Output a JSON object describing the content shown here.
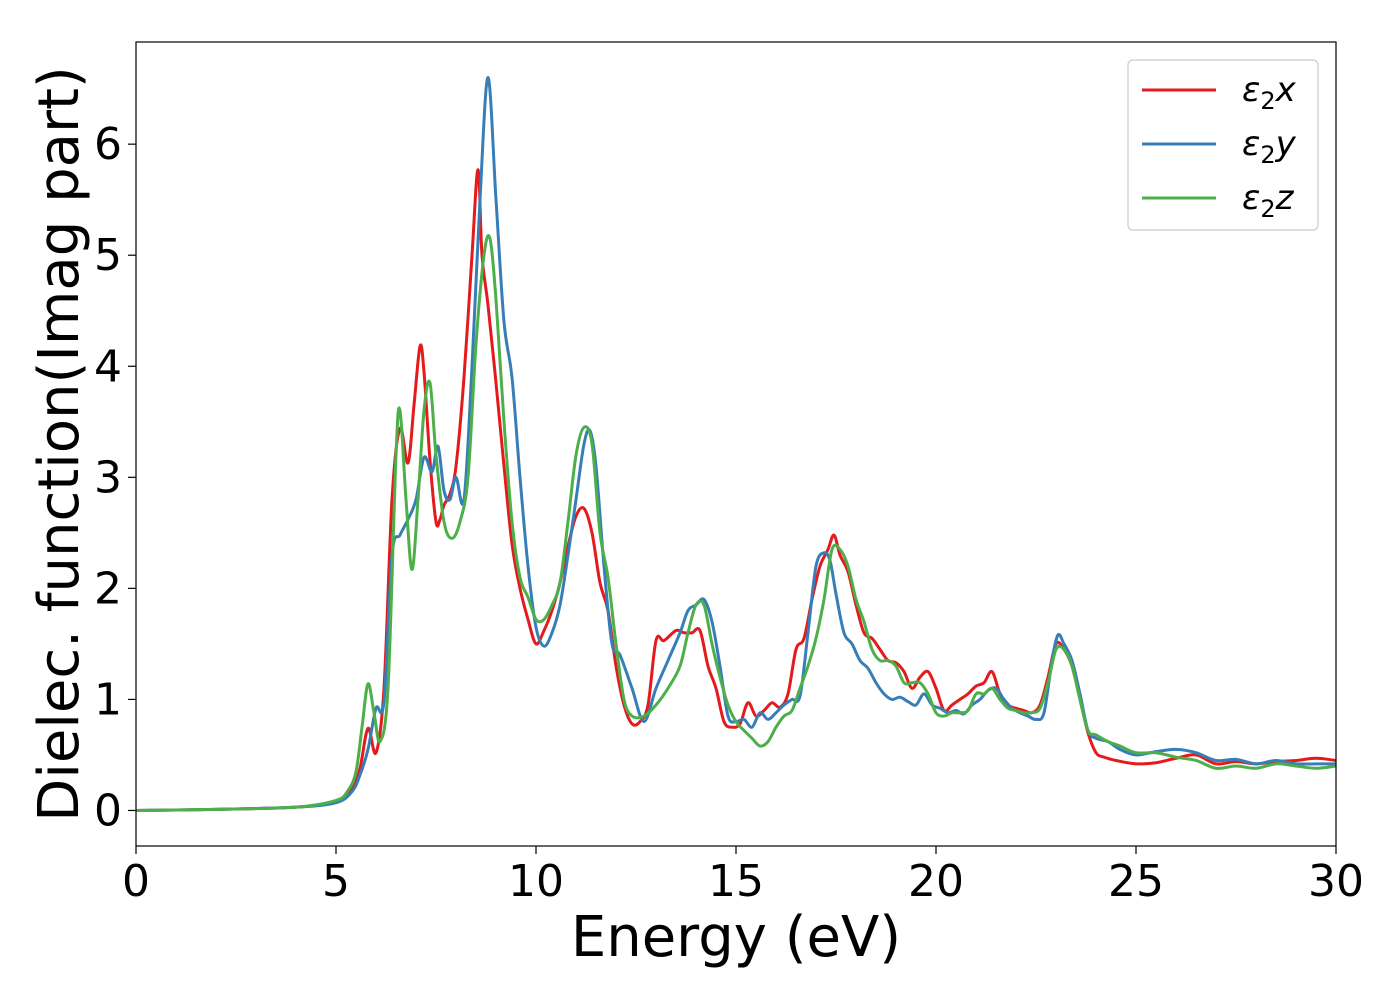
{
  "chart_data": {
    "type": "line",
    "xlabel": "Energy (eV)",
    "ylabel": "Dielec. function(Imag part)",
    "xlim": [
      0,
      30
    ],
    "ylim": [
      -0.32,
      6.92
    ],
    "xticks": [
      0,
      5,
      10,
      15,
      20,
      25,
      30
    ],
    "yticks": [
      0,
      1,
      2,
      3,
      4,
      5,
      6
    ],
    "grid": false,
    "legend_position": "top-right",
    "series": [
      {
        "name": "ε2x",
        "color": "#e41a1c",
        "x": [
          0,
          2,
          4,
          5,
          5.4,
          5.6,
          5.8,
          6.0,
          6.2,
          6.4,
          6.6,
          6.8,
          6.95,
          7.1,
          7.2,
          7.35,
          7.5,
          7.6,
          7.7,
          7.85,
          8.0,
          8.2,
          8.4,
          8.55,
          8.65,
          8.8,
          9.0,
          9.2,
          9.4,
          9.6,
          9.8,
          10.0,
          10.2,
          10.4,
          10.6,
          10.8,
          11.0,
          11.2,
          11.4,
          11.6,
          11.8,
          12.0,
          12.2,
          12.4,
          12.6,
          12.8,
          13.0,
          13.2,
          13.5,
          13.7,
          13.9,
          14.1,
          14.3,
          14.5,
          14.7,
          14.9,
          15.1,
          15.3,
          15.5,
          15.7,
          15.9,
          16.1,
          16.3,
          16.5,
          16.7,
          16.9,
          17.1,
          17.3,
          17.45,
          17.6,
          17.8,
          18.0,
          18.2,
          18.4,
          18.6,
          18.8,
          19.0,
          19.2,
          19.4,
          19.6,
          19.8,
          20.0,
          20.2,
          20.4,
          20.6,
          20.8,
          21.0,
          21.2,
          21.4,
          21.6,
          21.8,
          22.0,
          22.2,
          22.4,
          22.6,
          22.8,
          23.0,
          23.2,
          23.4,
          23.6,
          23.8,
          24.0,
          24.2,
          24.5,
          25.0,
          25.5,
          26.0,
          26.5,
          27.0,
          27.5,
          28.0,
          28.5,
          29.0,
          29.5,
          30.0
        ],
        "values": [
          0,
          0.01,
          0.03,
          0.08,
          0.2,
          0.38,
          0.74,
          0.52,
          1.1,
          2.8,
          3.44,
          3.13,
          3.65,
          4.18,
          3.95,
          3.15,
          2.6,
          2.62,
          2.75,
          2.85,
          3.1,
          3.9,
          5.0,
          5.77,
          5.0,
          4.55,
          3.85,
          3.1,
          2.4,
          2.0,
          1.72,
          1.5,
          1.62,
          1.8,
          2.05,
          2.38,
          2.65,
          2.72,
          2.5,
          2.05,
          1.8,
          1.3,
          0.95,
          0.78,
          0.8,
          0.95,
          1.53,
          1.53,
          1.62,
          1.6,
          1.6,
          1.62,
          1.3,
          1.1,
          0.8,
          0.75,
          0.78,
          0.97,
          0.85,
          0.9,
          0.97,
          0.93,
          1.05,
          1.45,
          1.55,
          1.9,
          2.2,
          2.35,
          2.48,
          2.3,
          2.15,
          1.85,
          1.6,
          1.55,
          1.45,
          1.35,
          1.33,
          1.25,
          1.1,
          1.2,
          1.25,
          1.1,
          0.9,
          0.95,
          1.0,
          1.05,
          1.12,
          1.15,
          1.25,
          1.05,
          0.95,
          0.92,
          0.9,
          0.88,
          0.95,
          1.2,
          1.5,
          1.45,
          1.3,
          1.0,
          0.7,
          0.52,
          0.48,
          0.45,
          0.42,
          0.43,
          0.47,
          0.5,
          0.42,
          0.44,
          0.42,
          0.44,
          0.45,
          0.47,
          0.45
        ]
      },
      {
        "name": "ε2y",
        "color": "#377eb8",
        "x": [
          0,
          2,
          4,
          5,
          5.4,
          5.6,
          5.8,
          6.0,
          6.2,
          6.4,
          6.6,
          6.8,
          7.0,
          7.2,
          7.4,
          7.55,
          7.7,
          7.85,
          8.0,
          8.2,
          8.4,
          8.6,
          8.8,
          9.0,
          9.2,
          9.4,
          9.6,
          9.8,
          10.0,
          10.2,
          10.4,
          10.6,
          10.8,
          11.0,
          11.2,
          11.35,
          11.5,
          11.7,
          11.9,
          12.1,
          12.4,
          12.7,
          13.0,
          13.3,
          13.6,
          13.8,
          14.0,
          14.2,
          14.4,
          14.6,
          14.8,
          15.0,
          15.2,
          15.4,
          15.6,
          15.8,
          16.0,
          16.2,
          16.4,
          16.6,
          16.8,
          17.0,
          17.2,
          17.35,
          17.5,
          17.7,
          17.9,
          18.1,
          18.3,
          18.5,
          18.7,
          18.9,
          19.1,
          19.3,
          19.5,
          19.7,
          19.9,
          20.1,
          20.3,
          20.5,
          20.7,
          20.9,
          21.1,
          21.3,
          21.5,
          21.7,
          21.9,
          22.1,
          22.3,
          22.5,
          22.7,
          22.9,
          23.05,
          23.2,
          23.4,
          23.6,
          23.8,
          24.0,
          24.3,
          24.6,
          25.0,
          25.5,
          26.0,
          26.5,
          27.0,
          27.5,
          28.0,
          28.5,
          29.0,
          29.5,
          30.0
        ],
        "values": [
          0,
          0.01,
          0.03,
          0.07,
          0.17,
          0.32,
          0.55,
          0.92,
          0.98,
          2.3,
          2.48,
          2.62,
          2.8,
          3.18,
          3.05,
          3.28,
          2.88,
          2.8,
          3.0,
          2.8,
          4.0,
          5.5,
          6.6,
          5.5,
          4.4,
          3.9,
          3.0,
          2.2,
          1.65,
          1.48,
          1.6,
          1.85,
          2.3,
          2.8,
          3.3,
          3.42,
          3.1,
          2.2,
          1.5,
          1.4,
          1.1,
          0.8,
          1.1,
          1.35,
          1.6,
          1.8,
          1.85,
          1.9,
          1.7,
          1.3,
          0.85,
          0.8,
          0.82,
          0.75,
          0.88,
          0.82,
          0.88,
          0.95,
          1.0,
          1.03,
          1.6,
          2.2,
          2.32,
          2.25,
          1.95,
          1.6,
          1.5,
          1.35,
          1.28,
          1.15,
          1.05,
          1.0,
          1.02,
          0.98,
          0.95,
          1.05,
          0.95,
          0.92,
          0.88,
          0.9,
          0.87,
          0.95,
          1.0,
          1.08,
          1.1,
          1.0,
          0.92,
          0.88,
          0.85,
          0.82,
          0.88,
          1.35,
          1.58,
          1.5,
          1.35,
          1.05,
          0.72,
          0.65,
          0.62,
          0.55,
          0.5,
          0.53,
          0.55,
          0.52,
          0.45,
          0.46,
          0.42,
          0.45,
          0.42,
          0.42,
          0.42
        ]
      },
      {
        "name": "ε2z",
        "color": "#4daf4a",
        "x": [
          0,
          2,
          4,
          5,
          5.3,
          5.5,
          5.65,
          5.8,
          5.95,
          6.1,
          6.3,
          6.5,
          6.6,
          6.75,
          6.9,
          7.05,
          7.2,
          7.35,
          7.5,
          7.7,
          7.9,
          8.1,
          8.3,
          8.5,
          8.7,
          8.85,
          9.0,
          9.2,
          9.4,
          9.6,
          9.8,
          10.0,
          10.2,
          10.4,
          10.6,
          10.8,
          11.0,
          11.2,
          11.4,
          11.6,
          11.8,
          12.0,
          12.2,
          12.4,
          12.7,
          13.0,
          13.3,
          13.6,
          13.8,
          14.0,
          14.2,
          14.4,
          14.6,
          14.8,
          15.0,
          15.2,
          15.4,
          15.6,
          15.8,
          16.0,
          16.2,
          16.4,
          16.6,
          16.8,
          17.0,
          17.2,
          17.4,
          17.6,
          17.8,
          18.0,
          18.2,
          18.4,
          18.6,
          18.8,
          19.0,
          19.2,
          19.4,
          19.6,
          19.8,
          20.0,
          20.2,
          20.4,
          20.6,
          20.8,
          21.0,
          21.2,
          21.4,
          21.6,
          21.8,
          22.0,
          22.2,
          22.4,
          22.6,
          22.8,
          23.0,
          23.2,
          23.4,
          23.6,
          23.8,
          24.0,
          24.3,
          24.6,
          25.0,
          25.5,
          26.0,
          26.5,
          27.0,
          27.5,
          28.0,
          28.5,
          29.0,
          29.5,
          30.0
        ],
        "values": [
          0,
          0.01,
          0.03,
          0.09,
          0.18,
          0.35,
          0.75,
          1.14,
          0.88,
          0.62,
          1.1,
          3.2,
          3.6,
          2.8,
          2.17,
          2.8,
          3.6,
          3.85,
          3.2,
          2.6,
          2.45,
          2.6,
          3.0,
          4.2,
          5.0,
          5.15,
          4.6,
          3.5,
          2.6,
          2.1,
          1.92,
          1.72,
          1.72,
          1.85,
          2.05,
          2.6,
          3.2,
          3.45,
          3.3,
          2.5,
          2.1,
          1.5,
          1.0,
          0.85,
          0.85,
          0.95,
          1.1,
          1.3,
          1.6,
          1.85,
          1.85,
          1.5,
          1.2,
          0.95,
          0.8,
          0.72,
          0.65,
          0.58,
          0.62,
          0.75,
          0.85,
          0.9,
          1.1,
          1.3,
          1.55,
          1.9,
          2.35,
          2.35,
          2.2,
          1.9,
          1.7,
          1.45,
          1.35,
          1.35,
          1.3,
          1.15,
          1.15,
          1.15,
          1.05,
          0.88,
          0.85,
          0.88,
          0.88,
          0.9,
          1.05,
          1.05,
          1.1,
          1.0,
          0.92,
          0.9,
          0.88,
          0.88,
          0.92,
          1.15,
          1.45,
          1.45,
          1.3,
          1.0,
          0.72,
          0.68,
          0.62,
          0.58,
          0.52,
          0.52,
          0.48,
          0.45,
          0.38,
          0.4,
          0.38,
          0.42,
          0.4,
          0.38,
          0.4
        ]
      }
    ]
  }
}
